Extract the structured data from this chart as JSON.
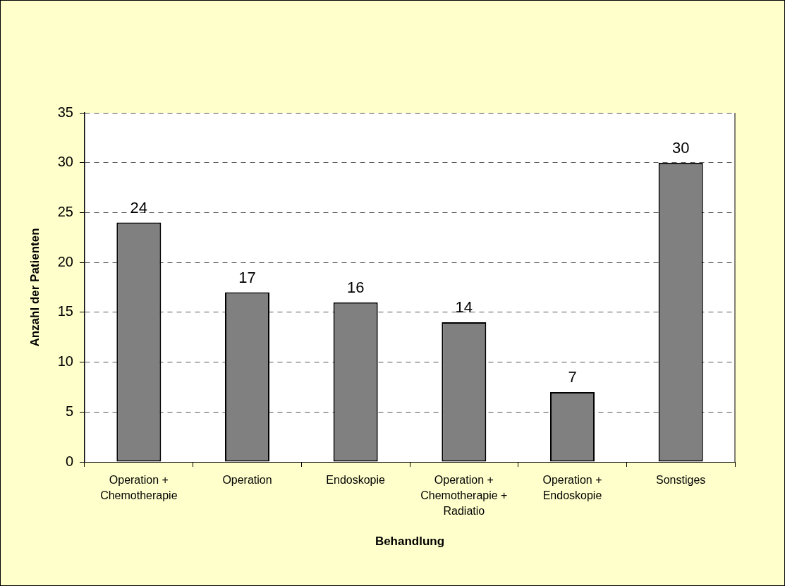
{
  "chart_data": {
    "type": "bar",
    "xlabel": "Behandlung",
    "ylabel": "Anzahl der Patienten",
    "categories": [
      "Operation + Chemotherapie",
      "Operation",
      "Endoskopie",
      "Operation + Chemotherapie + Radiatio",
      "Operation + Endoskopie",
      "Sonstiges"
    ],
    "values": [
      24,
      17,
      16,
      14,
      7,
      30
    ],
    "color": "#808080",
    "ylim": [
      0,
      35
    ],
    "yticks": [
      0,
      5,
      10,
      15,
      20,
      25,
      30,
      35
    ],
    "grid": "y",
    "data_labels": true
  }
}
